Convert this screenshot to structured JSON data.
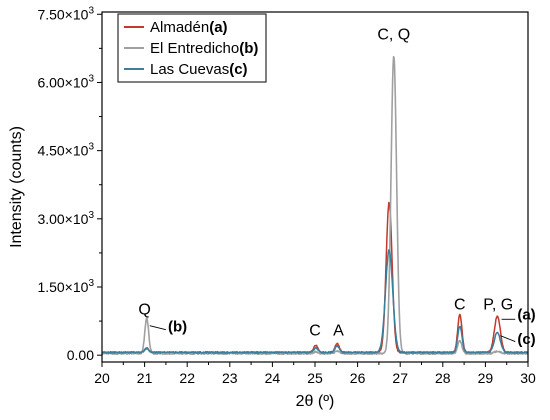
{
  "chart_data": {
    "type": "line",
    "xlabel": "2θ (º)",
    "ylabel": "Intensity (counts)",
    "xlim": [
      20,
      30
    ],
    "ylim": [
      -150,
      7550
    ],
    "x_ticks": [
      20,
      21,
      22,
      23,
      24,
      25,
      26,
      27,
      28,
      29,
      30
    ],
    "x_tick_labels": [
      "20",
      "21",
      "22",
      "23",
      "24",
      "25",
      "26",
      "27",
      "28",
      "29",
      "30"
    ],
    "y_ticks": [
      0,
      1500,
      3000,
      4500,
      6000,
      7500
    ],
    "y_tick_labels": [
      "0.00",
      "1.50×10³",
      "3.00×10³",
      "4.50×10³",
      "6.00×10³",
      "7.50×10³"
    ],
    "grid": false,
    "legend_position": "top-left",
    "series": [
      {
        "name": "Almadén",
        "tag": "(a)",
        "color": "#c0392b",
        "baseline": 60,
        "peaks": [
          {
            "x": 21.05,
            "height": 90,
            "width": 0.05
          },
          {
            "x": 25.02,
            "height": 160,
            "width": 0.05
          },
          {
            "x": 25.52,
            "height": 200,
            "width": 0.05
          },
          {
            "x": 26.74,
            "height": 3300,
            "width": 0.07
          },
          {
            "x": 28.4,
            "height": 830,
            "width": 0.05
          },
          {
            "x": 29.28,
            "height": 800,
            "width": 0.07
          }
        ]
      },
      {
        "name": "El Entredicho",
        "tag": "(b)",
        "color": "#a0a0a0",
        "baseline": 35,
        "peaks": [
          {
            "x": 21.05,
            "height": 780,
            "width": 0.045
          },
          {
            "x": 25.02,
            "height": 40,
            "width": 0.05
          },
          {
            "x": 25.52,
            "height": 60,
            "width": 0.05
          },
          {
            "x": 26.85,
            "height": 6550,
            "width": 0.065
          },
          {
            "x": 28.4,
            "height": 280,
            "width": 0.05
          },
          {
            "x": 29.28,
            "height": 50,
            "width": 0.07
          }
        ]
      },
      {
        "name": "Las Cuevas",
        "tag": "(c)",
        "color": "#3a7f9c",
        "baseline": 60,
        "peaks": [
          {
            "x": 21.05,
            "height": 90,
            "width": 0.05
          },
          {
            "x": 25.02,
            "height": 100,
            "width": 0.05
          },
          {
            "x": 25.52,
            "height": 150,
            "width": 0.05
          },
          {
            "x": 26.74,
            "height": 2250,
            "width": 0.085
          },
          {
            "x": 28.4,
            "height": 580,
            "width": 0.05
          },
          {
            "x": 29.28,
            "height": 440,
            "width": 0.07
          }
        ]
      }
    ],
    "annotations": [
      {
        "text": "Q",
        "x": 21.0,
        "y": 900
      },
      {
        "text": "C",
        "x": 25.0,
        "y": 430
      },
      {
        "text": "A",
        "x": 25.55,
        "y": 430
      },
      {
        "text": "C, Q",
        "x": 26.85,
        "y": 6950
      },
      {
        "text": "C",
        "x": 28.4,
        "y": 1000
      },
      {
        "text": "P, G",
        "x": 29.3,
        "y": 1000
      }
    ],
    "series_labels": [
      {
        "text": "(b)",
        "x": 21.55,
        "y": 520,
        "bold": true
      },
      {
        "text": "(a)",
        "x": 29.75,
        "y": 780,
        "bold": true
      },
      {
        "text": "(c)",
        "x": 29.75,
        "y": 250,
        "bold": true
      }
    ]
  }
}
